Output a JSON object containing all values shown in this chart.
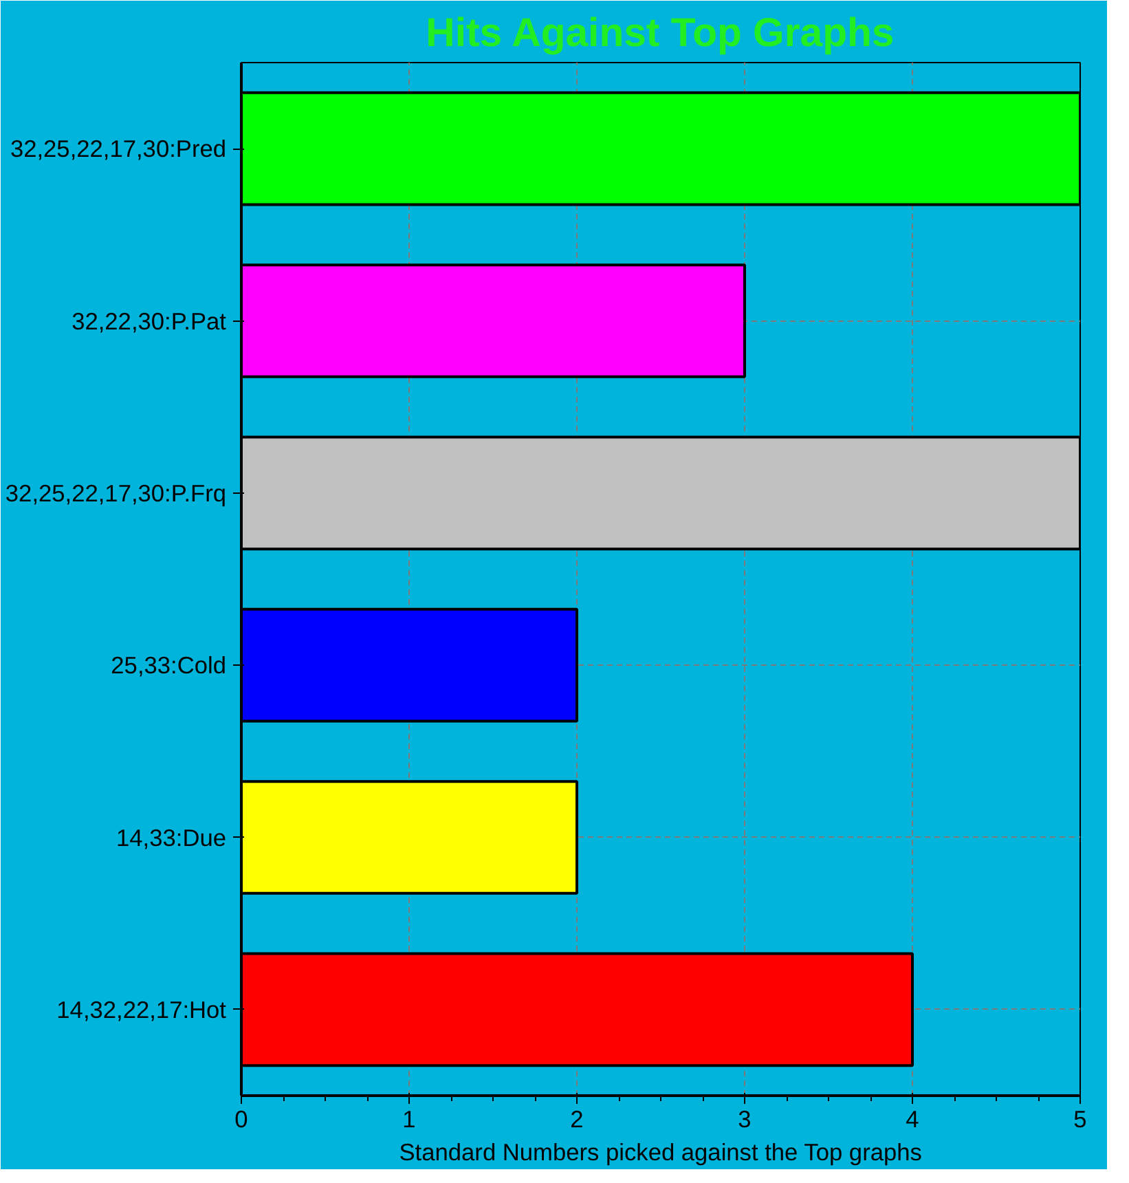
{
  "chart_data": {
    "type": "bar",
    "orientation": "horizontal",
    "title": "Hits Against Top Graphs",
    "xlabel": "Standard Numbers picked against the Top graphs",
    "categories": [
      "32,25,22,17,30:Pred",
      "32,22,30:P.Pat",
      "32,25,22,17,30:P.Frq",
      "25,33:Cold",
      "14,33:Due",
      "14,32,22,17:Hot"
    ],
    "values": [
      5,
      3,
      5,
      2,
      2,
      4
    ],
    "colors": [
      "#00ff00",
      "#ff00ff",
      "#c0c0c0",
      "#0000ff",
      "#ffff00",
      "#ff0000"
    ],
    "xlim": [
      0,
      5
    ],
    "xticks": [
      0,
      1,
      2,
      3,
      4,
      5
    ],
    "grid": true,
    "line_style": "dashed"
  }
}
